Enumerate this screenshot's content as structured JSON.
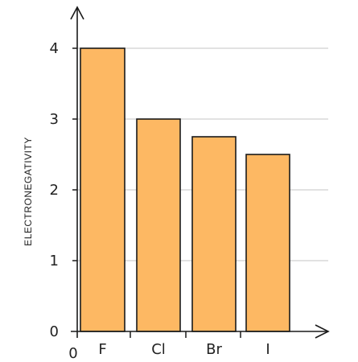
{
  "chart_data": {
    "type": "bar",
    "categories": [
      "F",
      "Cl",
      "Br",
      "I"
    ],
    "values": [
      4.0,
      3.0,
      2.75,
      2.5
    ],
    "ylabel": "ELECTRONEGATIVITY",
    "xlabel": "",
    "ylim": [
      0,
      4
    ],
    "yticks": [
      "0",
      "1",
      "2",
      "3",
      "4"
    ],
    "origin_label": "0",
    "grid": true,
    "colors": {
      "bar_fill": "#FDB863",
      "bar_stroke": "#1a1a1a",
      "grid": "#d0d0d0",
      "axis": "#1a1a1a"
    }
  }
}
